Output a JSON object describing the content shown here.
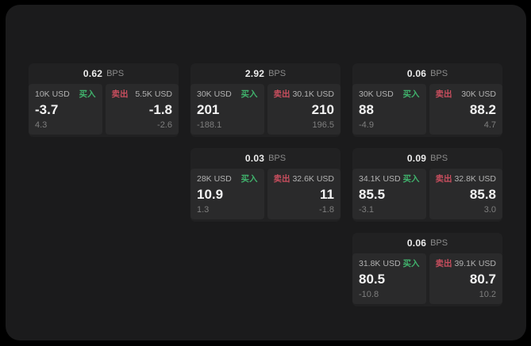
{
  "labels": {
    "unit": "BPS",
    "buy": "买入",
    "sell": "卖出"
  },
  "colors": {
    "page_background": "#000000",
    "panel_background": "#1b1b1c",
    "card_background": "#212122",
    "tile_background": "#2a2a2b",
    "buy_green": "#40b26c",
    "sell_red": "#c84e5e",
    "value_text": "#f4f4f4",
    "muted_text": "#7e7e7e"
  },
  "cards": [
    {
      "bps": "0.62",
      "buy": {
        "amount": "10K USD",
        "value": "-3.7",
        "delta": "4.3"
      },
      "sell": {
        "amount": "5.5K USD",
        "value": "-1.8",
        "delta": "-2.6"
      }
    },
    {
      "bps": "2.92",
      "buy": {
        "amount": "30K USD",
        "value": "201",
        "delta": "-188.1"
      },
      "sell": {
        "amount": "30.1K USD",
        "value": "210",
        "delta": "196.5"
      }
    },
    {
      "bps": "0.06",
      "buy": {
        "amount": "30K USD",
        "value": "88",
        "delta": "-4.9"
      },
      "sell": {
        "amount": "30K USD",
        "value": "88.2",
        "delta": "4.7"
      }
    },
    {
      "bps": "0.03",
      "buy": {
        "amount": "28K USD",
        "value": "10.9",
        "delta": "1.3"
      },
      "sell": {
        "amount": "32.6K USD",
        "value": "11",
        "delta": "-1.8"
      }
    },
    {
      "bps": "0.09",
      "buy": {
        "amount": "34.1K USD",
        "value": "85.5",
        "delta": "-3.1"
      },
      "sell": {
        "amount": "32.8K USD",
        "value": "85.8",
        "delta": "3.0"
      }
    },
    {
      "bps": "0.06",
      "buy": {
        "amount": "31.8K USD",
        "value": "80.5",
        "delta": "-10.8"
      },
      "sell": {
        "amount": "39.1K USD",
        "value": "80.7",
        "delta": "10.2"
      }
    }
  ]
}
